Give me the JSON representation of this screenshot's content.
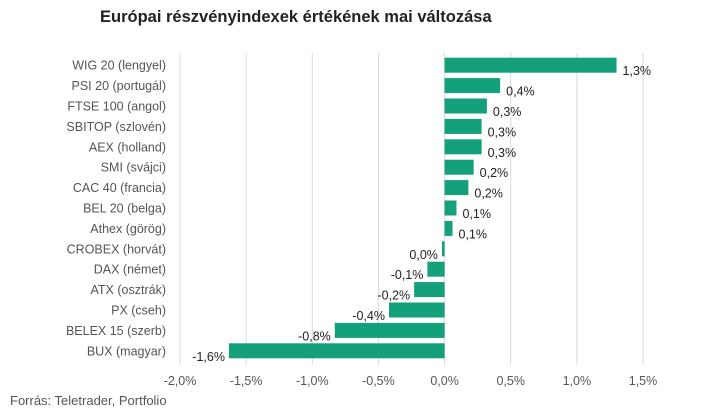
{
  "chart_data": {
    "type": "bar",
    "orientation": "horizontal",
    "title": "Európai részvényindexek értékének mai változása",
    "categories": [
      "WIG 20 (lengyel)",
      "PSI 20 (portugál)",
      "FTSE 100 (angol)",
      "SBITOP (szlovén)",
      "AEX (holland)",
      "SMI (svájci)",
      "CAC 40 (francia)",
      "BEL 20 (belga)",
      "Athex (görög)",
      "CROBEX (horvát)",
      "DAX (német)",
      "ATX (osztrák)",
      "PX (cseh)",
      "BELEX 15 (szerb)",
      "BUX (magyar)"
    ],
    "values": [
      1.3,
      0.42,
      0.32,
      0.28,
      0.28,
      0.22,
      0.18,
      0.09,
      0.06,
      -0.02,
      -0.13,
      -0.23,
      -0.42,
      -0.83,
      -1.63
    ],
    "value_labels": [
      "1,3%",
      "0,4%",
      "0,3%",
      "0,3%",
      "0,3%",
      "0,2%",
      "0,2%",
      "0,1%",
      "0,1%",
      "0,0%",
      "-0,1%",
      "-0,2%",
      "-0,4%",
      "-0,8%",
      "-1,6%"
    ],
    "xlim": [
      -2.0,
      1.5
    ],
    "xticks": [
      -2.0,
      -1.5,
      -1.0,
      -0.5,
      0.0,
      0.5,
      1.0,
      1.5
    ],
    "xtick_labels": [
      "-2,0%",
      "-1,5%",
      "-1,0%",
      "-0,5%",
      "0,0%",
      "0,5%",
      "1,0%",
      "1,5%"
    ],
    "grid": true,
    "bar_color": "#13a07a"
  },
  "source": "Forrás: Teletrader, Portfolio"
}
